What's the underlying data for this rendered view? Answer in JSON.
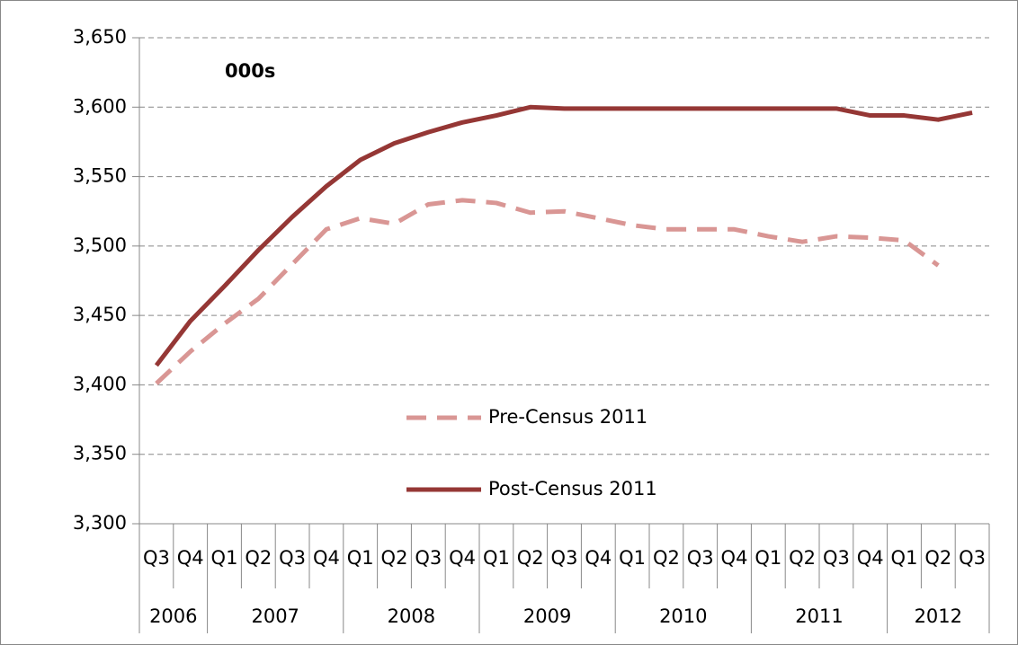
{
  "chart_data": {
    "type": "line",
    "annotation": "000s",
    "categories": [
      "Q3",
      "Q4",
      "Q1",
      "Q2",
      "Q3",
      "Q4",
      "Q1",
      "Q2",
      "Q3",
      "Q4",
      "Q1",
      "Q2",
      "Q3",
      "Q4",
      "Q1",
      "Q2",
      "Q3",
      "Q4",
      "Q1",
      "Q2",
      "Q3",
      "Q4",
      "Q1",
      "Q2",
      "Q3"
    ],
    "category_groups": [
      "2006",
      null,
      "2007",
      null,
      null,
      null,
      "2008",
      null,
      null,
      null,
      "2009",
      null,
      null,
      null,
      "2010",
      null,
      null,
      null,
      "2011",
      null,
      null,
      null,
      "2012",
      null,
      null
    ],
    "series": [
      {
        "name": "Pre-Census 2011",
        "color": "#d99694",
        "dashed": true,
        "values": [
          3401,
          3424,
          3444,
          3462,
          3487,
          3512,
          3520,
          3516,
          3530,
          3533,
          3531,
          3524,
          3525,
          3520,
          3515,
          3512,
          3512,
          3512,
          3507,
          3503,
          3507,
          3506,
          3504,
          3486,
          null
        ]
      },
      {
        "name": "Post-Census 2011",
        "color": "#953735",
        "dashed": false,
        "values": [
          3414,
          3446,
          3471,
          3497,
          3521,
          3543,
          3562,
          3574,
          3582,
          3589,
          3594,
          3600,
          3599,
          3599,
          3599,
          3599,
          3599,
          3599,
          3599,
          3599,
          3599,
          3594,
          3594,
          3591,
          3596
        ]
      }
    ],
    "ylim": [
      3300,
      3650
    ],
    "yticks": [
      {
        "value": 3300,
        "label": "3,300"
      },
      {
        "value": 3350,
        "label": "3,350"
      },
      {
        "value": 3400,
        "label": "3,400"
      },
      {
        "value": 3450,
        "label": "3,450"
      },
      {
        "value": 3500,
        "label": "3,500"
      },
      {
        "value": 3550,
        "label": "3,550"
      },
      {
        "value": 3600,
        "label": "3,600"
      },
      {
        "value": 3650,
        "label": "3,650"
      }
    ],
    "grid": true
  }
}
